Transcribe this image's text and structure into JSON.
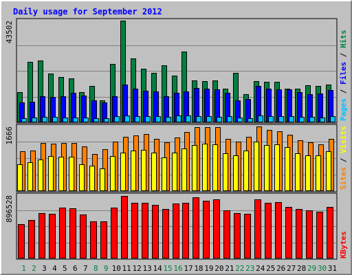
{
  "chart_data": {
    "type": "bar",
    "title": "Daily usage for September 2012",
    "categories": [
      "1",
      "2",
      "3",
      "4",
      "5",
      "6",
      "7",
      "8",
      "9",
      "10",
      "11",
      "12",
      "13",
      "14",
      "15",
      "16",
      "17",
      "18",
      "19",
      "20",
      "21",
      "22",
      "23",
      "24",
      "25",
      "26",
      "27",
      "28",
      "29",
      "30",
      "31"
    ],
    "weekend_days": [
      "1",
      "2",
      "8",
      "9",
      "15",
      "16",
      "22",
      "23",
      "29",
      "30"
    ],
    "colors": {
      "title": "#0000ff",
      "hits": "#008040",
      "files": "#0000ff",
      "pages": "#00c0ff",
      "visits": "#ffff00",
      "sites": "#ff8000",
      "kbytes": "#ff0000",
      "weekday_label": "#000000",
      "weekend_label": "#008040",
      "background": "#c0c0c0",
      "gridline": "#808080"
    },
    "panels": [
      {
        "id": "hits",
        "max_label": "43502",
        "ylim": [
          0,
          43502
        ],
        "series": [
          {
            "name": "Hits",
            "color": "#008040",
            "values": [
              12800,
              25800,
              26500,
              21000,
              19300,
              18700,
              12800,
              15600,
              9500,
              25100,
              43500,
              27400,
              23000,
              21200,
              24300,
              20000,
              30200,
              18000,
              17500,
              17800,
              14400,
              21100,
              12000,
              17500,
              17300,
              17200,
              14500,
              14300,
              16000,
              15700,
              16200
            ]
          },
          {
            "name": "Files",
            "color": "#0000ff",
            "values": [
              8500,
              8700,
              11200,
              10900,
              11200,
              12500,
              11500,
              9300,
              8500,
              11300,
              16300,
              14400,
              13600,
              13300,
              11300,
              12600,
              13300,
              14800,
              14300,
              14000,
              12700,
              9400,
              9900,
              15600,
              14300,
              14200,
              14000,
              12900,
              12000,
              12300,
              13700
            ]
          },
          {
            "name": "Pages",
            "color": "#00c0ff",
            "values": [
              1900,
              2000,
              2400,
              2300,
              2100,
              2000,
              2200,
              1900,
              1700,
              2500,
              3000,
              2600,
              2700,
              2500,
              2400,
              2900,
              2800,
              2600,
              2500,
              2400,
              2500,
              2200,
              1800,
              2800,
              2700,
              2600,
              2500,
              2400,
              2300,
              2200,
              2500
            ]
          }
        ]
      },
      {
        "id": "visits",
        "max_label": "1666",
        "ylim": [
          0,
          1666
        ],
        "series": [
          {
            "name": "Sites",
            "color": "#ff8000",
            "values": [
              1030,
              1050,
              1240,
              1230,
              1240,
              1240,
              1150,
              950,
              1080,
              1280,
              1400,
              1430,
              1470,
              1340,
              1250,
              1380,
              1530,
              1650,
              1640,
              1650,
              1340,
              1270,
              1400,
              1666,
              1580,
              1550,
              1460,
              1310,
              1250,
              1200,
              1350
            ]
          },
          {
            "name": "Visits",
            "color": "#ffff00",
            "values": [
              700,
              750,
              820,
              900,
              890,
              880,
              700,
              650,
              580,
              900,
              1000,
              1050,
              1070,
              990,
              860,
              990,
              1090,
              1180,
              1220,
              1210,
              980,
              920,
              1040,
              1280,
              1190,
              1200,
              1140,
              980,
              930,
              920,
              1030
            ]
          }
        ]
      },
      {
        "id": "kbytes",
        "max_label": "896528",
        "ylim": [
          0,
          896528
        ],
        "series": [
          {
            "name": "KBytes",
            "color": "#ff0000",
            "values": [
              490000,
              545000,
              640000,
              635000,
              725000,
              710000,
              620000,
              528000,
              530000,
              720000,
              887000,
              788000,
              788000,
              764000,
              706000,
              782000,
              792000,
              865000,
              822000,
              835000,
              682000,
              642000,
              630000,
              835000,
              788000,
              800000,
              732000,
              700000,
              680000,
              658000,
              728000
            ]
          }
        ]
      }
    ],
    "side_labels": {
      "hits_panel": [
        {
          "text": "Pages",
          "color": "#00c0ff"
        },
        {
          "text": " / ",
          "color": "#000000"
        },
        {
          "text": "Files",
          "color": "#0000ff"
        },
        {
          "text": " / ",
          "color": "#000000"
        },
        {
          "text": "Hits",
          "color": "#008040"
        }
      ],
      "visits_panel": [
        {
          "text": "Sites",
          "color": "#ff8000"
        },
        {
          "text": " / ",
          "color": "#000000"
        },
        {
          "text": "Visits",
          "color": "#ffff00"
        }
      ],
      "kbytes_panel": [
        {
          "text": "KBytes",
          "color": "#ff0000"
        }
      ]
    },
    "grid": true,
    "legend": "right"
  }
}
